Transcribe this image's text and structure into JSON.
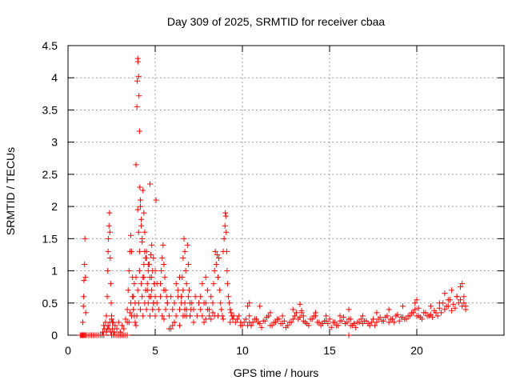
{
  "chart_data": {
    "type": "scatter",
    "title": "Day 309 of 2025, SRMTID for receiver cbaa",
    "xlabel": "GPS time / hours",
    "ylabel": "SRMTID / TECUs",
    "xlim": [
      0,
      25
    ],
    "ylim": [
      0,
      4.5
    ],
    "x_ticks": [
      0,
      5,
      10,
      15,
      20
    ],
    "x_tick_labels": [
      "0",
      "5",
      "10",
      "15",
      "20"
    ],
    "y_ticks": [
      0,
      0.5,
      1,
      1.5,
      2,
      2.5,
      3,
      3.5,
      4,
      4.5
    ],
    "y_tick_labels": [
      "0",
      "0.5",
      "1",
      "1.5",
      "2",
      "2.5",
      "3",
      "3.5",
      "4",
      "4.5"
    ],
    "grid": true,
    "marker": "+",
    "series": [
      {
        "name": "SRMTID",
        "color": "#ff0000",
        "x": [
          0.7,
          0.75,
          0.8,
          0.85,
          0.9,
          0.95,
          1.0,
          1.05,
          1.15,
          1.25,
          1.35,
          1.45,
          1.55,
          1.65,
          1.75,
          1.85,
          1.95,
          2.05,
          2.5,
          2.6,
          2.7,
          2.8,
          2.9,
          3.0,
          3.1,
          3.2,
          3.3,
          3.4,
          16.1,
          0.85,
          0.88,
          0.9,
          0.92,
          0.95,
          0.97,
          1.0,
          1.02,
          2.0,
          2.05,
          2.1,
          2.15,
          2.2,
          2.25,
          2.3,
          2.35,
          2.4,
          2.45,
          2.5,
          2.55,
          2.6,
          2.65,
          2.7,
          2.8,
          2.9,
          3.0,
          3.1,
          3.2,
          3.3,
          3.4,
          2.2,
          2.25,
          2.28,
          2.3,
          2.32,
          2.35,
          2.38,
          2.4,
          2.42,
          2.45,
          2.48,
          2.5,
          2.55,
          3.4,
          3.45,
          3.5,
          3.55,
          3.6,
          3.65,
          3.7,
          3.75,
          3.8,
          3.85,
          3.9,
          3.5,
          3.55,
          3.6,
          3.65,
          3.7,
          3.75,
          3.8,
          3.85,
          3.9,
          3.95,
          4.0,
          4.05,
          4.1,
          4.15,
          4.2,
          4.25,
          4.3,
          4.35,
          4.4,
          4.45,
          4.5,
          4.55,
          4.6,
          4.65,
          4.7,
          4.75,
          4.8,
          4.85,
          4.9,
          4.95,
          3.9,
          3.95,
          3.97,
          4.0,
          4.02,
          4.05,
          4.07,
          4.1,
          4.12,
          4.15,
          4.2,
          4.25,
          4.0,
          4.05,
          4.1,
          4.15,
          4.2,
          4.25,
          4.3,
          4.35,
          4.4,
          4.5,
          4.6,
          4.7,
          4.8,
          4.9,
          5.0,
          5.05,
          5.1,
          4.3,
          4.35,
          4.4,
          4.45,
          4.5,
          4.55,
          4.6,
          4.65,
          4.7,
          4.75,
          4.8,
          4.85,
          4.9,
          4.95,
          5.0,
          5.0,
          5.1,
          5.2,
          5.3,
          5.4,
          5.5,
          5.6,
          5.7,
          5.8,
          5.9,
          6.0,
          6.1,
          6.2,
          6.3,
          6.4,
          6.5,
          6.6,
          6.7,
          6.8,
          6.9,
          7.0,
          5.3,
          5.35,
          5.4,
          5.45,
          5.5,
          5.55,
          5.6,
          5.65,
          5.7,
          5.9,
          6.0,
          6.1,
          6.2,
          6.3,
          6.4,
          6.5,
          6.6,
          6.7,
          6.8,
          6.5,
          6.55,
          6.6,
          6.65,
          6.7,
          6.75,
          6.8,
          6.85,
          6.9,
          6.95,
          7.0,
          7.05,
          7.0,
          7.1,
          7.2,
          7.3,
          7.4,
          7.5,
          7.6,
          7.7,
          7.8,
          7.9,
          8.0,
          8.1,
          8.2,
          8.3,
          8.4,
          7.6,
          7.7,
          7.8,
          7.9,
          8.0,
          8.1,
          8.2,
          8.3,
          8.35,
          8.4,
          8.45,
          8.5,
          8.55,
          8.6,
          8.65,
          8.7,
          8.75,
          8.8,
          8.85,
          8.9,
          8.9,
          8.95,
          9.0,
          9.02,
          9.05,
          9.07,
          9.1,
          9.12,
          9.15,
          9.2,
          9.25,
          9.3,
          9.35,
          9.4,
          9.45,
          9.5,
          9.6,
          9.7,
          9.8,
          9.9,
          10.0,
          10.1,
          10.2,
          10.3,
          10.4,
          10.5,
          5.5,
          5.8,
          6.1,
          6.4,
          6.7,
          7.2,
          7.9,
          8.6,
          9.3,
          9.9,
          10.3,
          10.4,
          10.6,
          10.8,
          11.0,
          11.2,
          11.4,
          11.6,
          11.8,
          12.0,
          12.2,
          12.4,
          12.6,
          12.8,
          13.0,
          13.2,
          13.4,
          13.6,
          13.8,
          14.0,
          14.2,
          14.4,
          14.6,
          14.8,
          15.0,
          15.2,
          15.4,
          15.6,
          15.8,
          16.0,
          16.2,
          16.4,
          16.6,
          16.8,
          17.0,
          17.2,
          17.4,
          17.6,
          17.8,
          18.0,
          18.2,
          18.4,
          18.6,
          18.8,
          19.0,
          19.2,
          19.4,
          19.6,
          19.8,
          20.0,
          20.2,
          20.4,
          20.6,
          20.8,
          21.0,
          21.2,
          21.4,
          21.6,
          21.8,
          22.0,
          22.2,
          22.4,
          22.6,
          22.8,
          10.5,
          10.7,
          10.9,
          11.1,
          11.3,
          11.5,
          11.7,
          11.9,
          12.1,
          12.3,
          12.5,
          12.7,
          12.9,
          13.1,
          13.3,
          13.5,
          13.7,
          13.9,
          14.1,
          14.3,
          14.5,
          14.7,
          14.9,
          15.1,
          15.3,
          15.5,
          15.7,
          15.9,
          16.1,
          16.3,
          16.5,
          16.7,
          16.9,
          17.1,
          17.3,
          17.5,
          17.7,
          17.9,
          18.1,
          18.3,
          18.5,
          18.7,
          18.9,
          19.1,
          19.3,
          19.5,
          19.7,
          19.9,
          20.1,
          20.3,
          20.5,
          20.7,
          20.9,
          21.1,
          21.3,
          21.5,
          21.7,
          21.9,
          22.1,
          22.3,
          22.5,
          22.7,
          10.4,
          11.0,
          11.6,
          12.3,
          12.9,
          13.3,
          13.4,
          13.5,
          14.2,
          14.8,
          15.6,
          16.1,
          16.2,
          16.9,
          17.7,
          18.4,
          19.2,
          19.9,
          20.0,
          20.1,
          20.8,
          21.3,
          21.6,
          21.8,
          22.0,
          22.3,
          22.5,
          22.6,
          22.7,
          22.8
        ],
        "y": [
          0,
          0,
          0,
          0,
          0,
          0,
          0,
          0,
          0,
          0,
          0,
          0,
          0,
          0,
          0,
          0,
          0,
          0,
          0,
          0,
          0,
          0,
          0,
          0,
          0,
          0,
          0,
          0,
          0,
          0.2,
          0.45,
          0.6,
          0.85,
          1.1,
          1.5,
          0.9,
          0.35,
          0.05,
          0.15,
          0.1,
          0.2,
          0.05,
          0.1,
          0.15,
          0.1,
          0.2,
          0.05,
          0.25,
          0.1,
          0.2,
          0.05,
          0.15,
          0.1,
          0.2,
          0.05,
          0.15,
          0.1,
          0.25,
          0.2,
          0.3,
          0.6,
          1.0,
          1.3,
          1.5,
          1.7,
          1.9,
          1.6,
          1.2,
          0.8,
          0.5,
          0.3,
          0.2,
          0.4,
          0.7,
          1.0,
          1.3,
          1.55,
          1.3,
          0.9,
          0.6,
          0.3,
          0.2,
          0.15,
          0.2,
          0.35,
          0.5,
          0.3,
          0.6,
          0.4,
          0.8,
          0.5,
          0.9,
          0.3,
          0.7,
          0.5,
          1.0,
          0.4,
          0.8,
          0.6,
          0.3,
          0.9,
          0.5,
          1.2,
          0.4,
          0.7,
          0.5,
          1.1,
          0.3,
          0.6,
          0.9,
          0.4,
          0.5,
          0.8,
          2.65,
          3.55,
          3.95,
          4.3,
          4.25,
          4.02,
          3.72,
          3.17,
          2.3,
          2.0,
          1.8,
          1.5,
          1.95,
          1.6,
          1.3,
          2.1,
          1.7,
          1.45,
          2.25,
          1.9,
          1.6,
          1.3,
          1.1,
          2.35,
          1.4,
          1.2,
          1.0,
          2.1,
          0.8,
          0.9,
          1.1,
          1.3,
          0.7,
          1.2,
          0.8,
          1.0,
          0.6,
          0.9,
          1.25,
          0.7,
          1.0,
          0.5,
          0.8,
          0.6,
          0.3,
          0.5,
          0.4,
          0.6,
          0.3,
          0.7,
          0.4,
          0.5,
          0.3,
          0.6,
          0.4,
          0.5,
          0.3,
          0.7,
          0.4,
          0.6,
          0.3,
          0.5,
          0.4,
          0.6,
          0.3,
          0.8,
          1.0,
          1.2,
          1.4,
          1.1,
          0.9,
          0.7,
          0.6,
          0.5,
          0.1,
          0.15,
          0.2,
          0.8,
          0.6,
          0.9,
          0.5,
          0.7,
          0.4,
          0.3,
          0.6,
          0.9,
          1.2,
          1.5,
          1.3,
          1.0,
          0.8,
          1.4,
          1.1,
          0.7,
          0.5,
          0.4,
          0.3,
          0.5,
          0.4,
          0.6,
          0.3,
          0.5,
          0.4,
          0.3,
          0.2,
          0.5,
          0.4,
          0.3,
          0.25,
          0.35,
          0.3,
          0.6,
          0.8,
          0.5,
          0.9,
          0.7,
          0.4,
          0.6,
          0.5,
          0.8,
          1.0,
          1.3,
          1.1,
          1.25,
          0.9,
          1.2,
          0.7,
          0.5,
          0.4,
          0.3,
          0.25,
          1.3,
          1.5,
          1.7,
          1.9,
          1.85,
          1.6,
          1.3,
          1.0,
          0.8,
          0.6,
          0.5,
          0.4,
          0.35,
          0.3,
          0.25,
          0.3,
          0.2,
          0.25,
          0.3,
          0.2,
          0.15,
          0.2,
          0.25,
          0.15,
          0.2,
          0.15,
          0.25,
          0.1,
          0.2,
          0.15,
          0.3,
          0.2,
          0.25,
          0.3,
          0.2,
          0.15,
          0.45,
          0.3,
          0.2,
          0.25,
          0.18,
          0.22,
          0.28,
          0.15,
          0.2,
          0.25,
          0.18,
          0.22,
          0.15,
          0.2,
          0.3,
          0.25,
          0.35,
          0.2,
          0.15,
          0.25,
          0.3,
          0.2,
          0.18,
          0.22,
          0.25,
          0.2,
          0.15,
          0.22,
          0.28,
          0.2,
          0.15,
          0.18,
          0.2,
          0.25,
          0.22,
          0.18,
          0.2,
          0.15,
          0.25,
          0.22,
          0.28,
          0.2,
          0.25,
          0.3,
          0.22,
          0.28,
          0.25,
          0.3,
          0.35,
          0.3,
          0.28,
          0.35,
          0.3,
          0.32,
          0.38,
          0.3,
          0.35,
          0.4,
          0.45,
          0.38,
          0.42,
          0.5,
          0.45,
          0.4,
          0.15,
          0.25,
          0.2,
          0.12,
          0.22,
          0.3,
          0.15,
          0.2,
          0.25,
          0.18,
          0.12,
          0.2,
          0.25,
          0.35,
          0.28,
          0.22,
          0.18,
          0.25,
          0.3,
          0.2,
          0.15,
          0.22,
          0.18,
          0.12,
          0.2,
          0.15,
          0.22,
          0.18,
          0.25,
          0.15,
          0.12,
          0.2,
          0.18,
          0.22,
          0.15,
          0.25,
          0.2,
          0.28,
          0.22,
          0.3,
          0.25,
          0.2,
          0.32,
          0.28,
          0.25,
          0.3,
          0.35,
          0.4,
          0.3,
          0.25,
          0.35,
          0.3,
          0.28,
          0.35,
          0.42,
          0.5,
          0.45,
          0.55,
          0.48,
          0.6,
          0.55,
          0.5,
          0.5,
          0.45,
          0.35,
          0.3,
          0.4,
          0.48,
          0.38,
          0.3,
          0.35,
          0.3,
          0.3,
          0.4,
          0.25,
          0.3,
          0.35,
          0.4,
          0.45,
          0.5,
          0.55,
          0.42,
          0.45,
          0.5,
          0.65,
          0.55,
          0.7,
          0.6,
          0.75,
          0.8,
          0.6,
          0.45
        ]
      }
    ]
  }
}
